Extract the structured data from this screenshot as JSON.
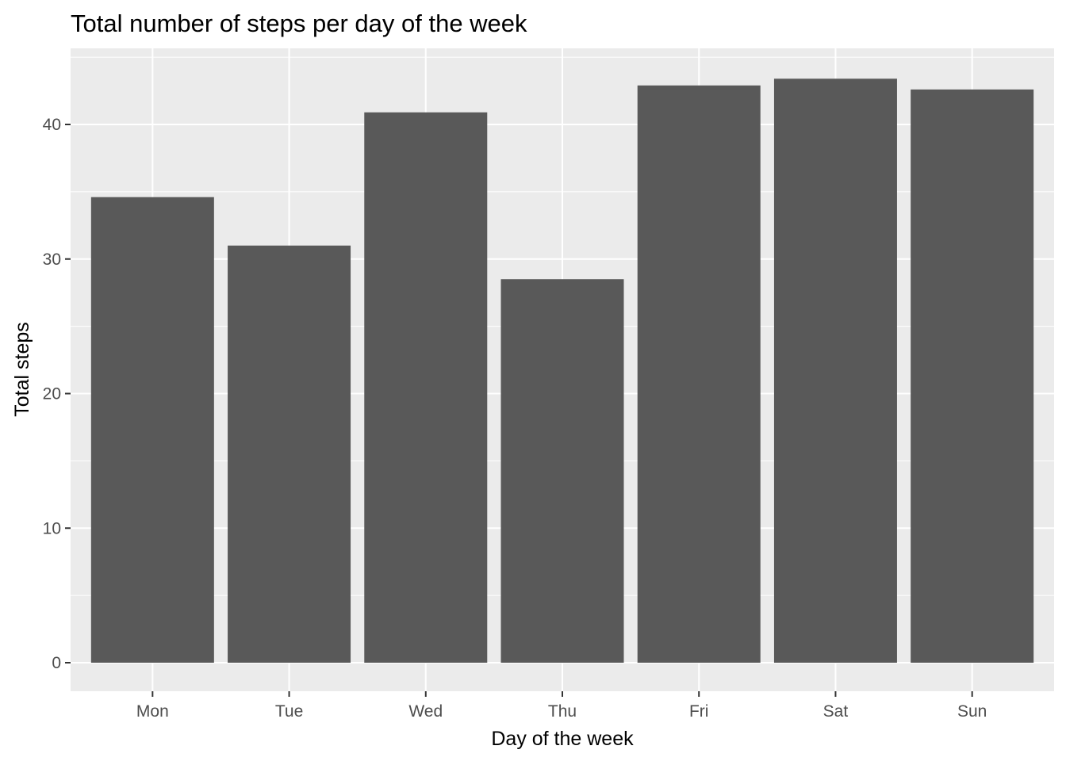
{
  "chart_data": {
    "type": "bar",
    "title": "Total number of steps per day of the week",
    "xlabel": "Day of the week",
    "ylabel": "Total steps",
    "categories": [
      "Mon",
      "Tue",
      "Wed",
      "Thu",
      "Fri",
      "Sat",
      "Sun"
    ],
    "values": [
      34.6,
      31.0,
      40.9,
      28.5,
      42.9,
      43.4,
      42.6
    ],
    "ylim": [
      0,
      45.6
    ],
    "yticks": [
      0,
      10,
      20,
      30,
      40
    ],
    "grid": true,
    "legend": "none",
    "colors": {
      "bar": "#595959",
      "panel": "#EBEBEB",
      "grid": "#FFFFFF",
      "tick_text": "#4D4D4D",
      "tick_mark": "#333333"
    }
  }
}
